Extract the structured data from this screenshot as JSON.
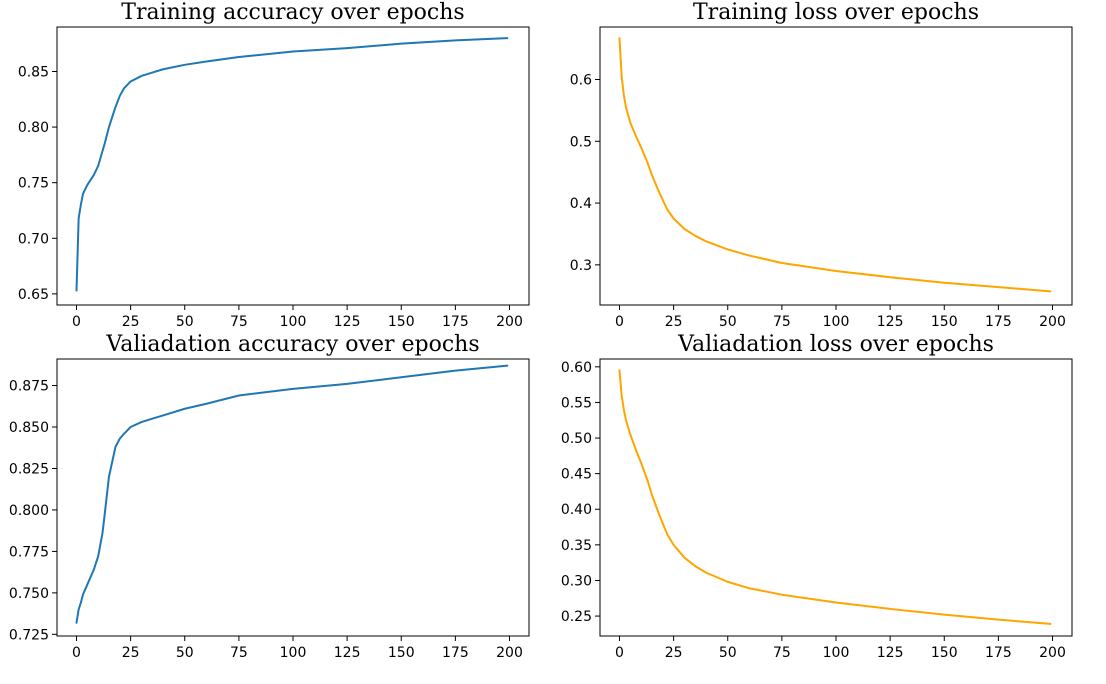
{
  "chart_data": [
    {
      "type": "line",
      "title": "Training accuracy over epochs",
      "xlabel": "",
      "ylabel": "",
      "xlim": [
        -9,
        209
      ],
      "ylim": [
        0.64,
        0.89
      ],
      "xticks": [
        0,
        25,
        50,
        75,
        100,
        125,
        150,
        175,
        200
      ],
      "yticks": [
        0.65,
        0.7,
        0.75,
        0.8,
        0.85
      ],
      "ytick_labels": [
        "0.65",
        "0.70",
        "0.75",
        "0.80",
        "0.85"
      ],
      "color": "#1f77b4",
      "grid": false,
      "series": [
        {
          "x": [
            0,
            1,
            2,
            3,
            5,
            8,
            10,
            13,
            15,
            18,
            20,
            22,
            25,
            30,
            35,
            40,
            50,
            60,
            75,
            100,
            125,
            150,
            175,
            199
          ],
          "values": [
            0.653,
            0.718,
            0.73,
            0.74,
            0.748,
            0.757,
            0.765,
            0.785,
            0.8,
            0.818,
            0.828,
            0.835,
            0.841,
            0.846,
            0.849,
            0.852,
            0.856,
            0.859,
            0.863,
            0.868,
            0.871,
            0.875,
            0.878,
            0.88
          ]
        }
      ]
    },
    {
      "type": "line",
      "title": "Training loss over epochs",
      "xlabel": "",
      "ylabel": "",
      "xlim": [
        -9,
        209
      ],
      "ylim": [
        0.235,
        0.685
      ],
      "xticks": [
        0,
        25,
        50,
        75,
        100,
        125,
        150,
        175,
        200
      ],
      "yticks": [
        0.3,
        0.4,
        0.5,
        0.6
      ],
      "ytick_labels": [
        "0.3",
        "0.4",
        "0.5",
        "0.6"
      ],
      "color": "#ffa500",
      "grid": false,
      "series": [
        {
          "x": [
            0,
            1,
            2,
            3,
            5,
            8,
            10,
            13,
            15,
            18,
            20,
            22,
            25,
            30,
            35,
            40,
            50,
            60,
            75,
            100,
            125,
            150,
            175,
            199
          ],
          "values": [
            0.667,
            0.605,
            0.575,
            0.555,
            0.53,
            0.505,
            0.49,
            0.465,
            0.445,
            0.42,
            0.405,
            0.39,
            0.375,
            0.358,
            0.347,
            0.338,
            0.325,
            0.315,
            0.303,
            0.29,
            0.28,
            0.271,
            0.264,
            0.257
          ]
        }
      ]
    },
    {
      "type": "line",
      "title": "Valiadation accuracy over epochs",
      "xlabel": "",
      "ylabel": "",
      "xlim": [
        -9,
        209
      ],
      "ylim": [
        0.724,
        0.891
      ],
      "xticks": [
        0,
        25,
        50,
        75,
        100,
        125,
        150,
        175,
        200
      ],
      "yticks": [
        0.725,
        0.75,
        0.775,
        0.8,
        0.825,
        0.85,
        0.875
      ],
      "ytick_labels": [
        "0.725",
        "0.750",
        "0.775",
        "0.800",
        "0.825",
        "0.850",
        "0.875"
      ],
      "color": "#1f77b4",
      "grid": false,
      "series": [
        {
          "x": [
            0,
            1,
            2,
            3,
            5,
            8,
            10,
            12,
            13,
            15,
            18,
            20,
            22,
            25,
            30,
            35,
            40,
            50,
            60,
            75,
            100,
            125,
            150,
            175,
            199
          ],
          "values": [
            0.732,
            0.74,
            0.744,
            0.749,
            0.755,
            0.764,
            0.772,
            0.786,
            0.797,
            0.82,
            0.838,
            0.843,
            0.846,
            0.85,
            0.853,
            0.855,
            0.857,
            0.861,
            0.864,
            0.869,
            0.873,
            0.876,
            0.88,
            0.884,
            0.887
          ]
        }
      ]
    },
    {
      "type": "line",
      "title": "Valiadation loss over epochs",
      "xlabel": "",
      "ylabel": "",
      "xlim": [
        -9,
        209
      ],
      "ylim": [
        0.222,
        0.611
      ],
      "xticks": [
        0,
        25,
        50,
        75,
        100,
        125,
        150,
        175,
        200
      ],
      "yticks": [
        0.25,
        0.3,
        0.35,
        0.4,
        0.45,
        0.5,
        0.55,
        0.6
      ],
      "ytick_labels": [
        "0.25",
        "0.30",
        "0.35",
        "0.40",
        "0.45",
        "0.50",
        "0.55",
        "0.60"
      ],
      "color": "#ffa500",
      "grid": false,
      "series": [
        {
          "x": [
            0,
            1,
            2,
            3,
            5,
            8,
            10,
            13,
            15,
            18,
            20,
            22,
            25,
            30,
            35,
            40,
            50,
            60,
            75,
            100,
            125,
            150,
            175,
            199
          ],
          "values": [
            0.595,
            0.56,
            0.54,
            0.525,
            0.505,
            0.48,
            0.465,
            0.44,
            0.42,
            0.395,
            0.38,
            0.365,
            0.35,
            0.332,
            0.32,
            0.311,
            0.298,
            0.289,
            0.28,
            0.269,
            0.26,
            0.252,
            0.245,
            0.239
          ]
        }
      ]
    }
  ]
}
